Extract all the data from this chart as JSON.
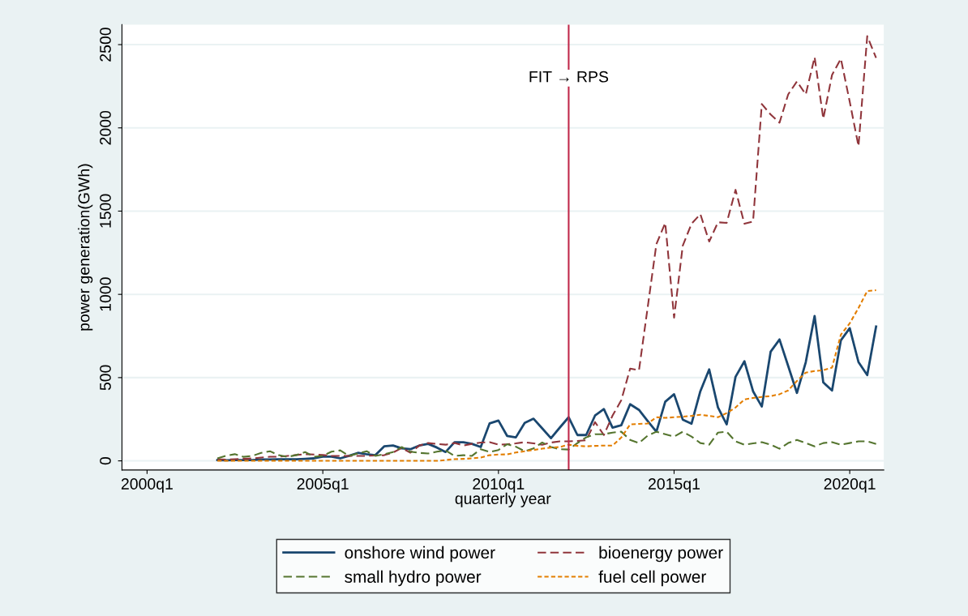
{
  "chart_data": {
    "type": "line",
    "xlabel": "quarterly year",
    "ylabel": "power generation(GWh)",
    "x": [
      "2002-01",
      "2002-04",
      "2002-07",
      "2002-10",
      "2003-01",
      "2003-04",
      "2003-07",
      "2003-10",
      "2004-01",
      "2004-04",
      "2004-07",
      "2004-10",
      "2005-01",
      "2005-04",
      "2005-07",
      "2005-10",
      "2006-01",
      "2006-04",
      "2006-07",
      "2006-10",
      "2007-01",
      "2007-04",
      "2007-07",
      "2007-10",
      "2008-01",
      "2008-04",
      "2008-07",
      "2008-10",
      "2009-01",
      "2009-04",
      "2009-07",
      "2009-10",
      "2010-01",
      "2010-04",
      "2010-07",
      "2010-10",
      "2011-01",
      "2011-04",
      "2011-07",
      "2011-10",
      "2012-01",
      "2012-04",
      "2012-07",
      "2012-10",
      "2013-01",
      "2013-04",
      "2013-07",
      "2013-10",
      "2014-01",
      "2014-04",
      "2014-07",
      "2014-10",
      "2015-01",
      "2015-04",
      "2015-07",
      "2015-10",
      "2016-01",
      "2016-04",
      "2016-07",
      "2016-10",
      "2017-01",
      "2017-04",
      "2017-07",
      "2017-10",
      "2018-01",
      "2018-04",
      "2018-07",
      "2018-10",
      "2019-01",
      "2019-04",
      "2019-07",
      "2019-10",
      "2020-01",
      "2020-04",
      "2020-07",
      "2020-10"
    ],
    "xlim": [
      "1999-04-15",
      "2020-12-20"
    ],
    "ylim": [
      -55,
      2620
    ],
    "xticks": [
      {
        "value": "2000-01",
        "label": "2000q1"
      },
      {
        "value": "2005-01",
        "label": "2005q1"
      },
      {
        "value": "2010-01",
        "label": "2010q1"
      },
      {
        "value": "2015-01",
        "label": "2015q1"
      },
      {
        "value": "2020-01",
        "label": "2020q1"
      }
    ],
    "yticks": [
      0,
      500,
      1000,
      1500,
      2000,
      2500
    ],
    "grid": "y",
    "legend": "bottom",
    "marker": "none",
    "ref_lines": [
      {
        "axis": "x",
        "value": "2012-01",
        "label": "FIT → RPS",
        "color": "#c0284a",
        "line_style": "solid"
      }
    ],
    "series": [
      {
        "name": "onshore wind power",
        "color": "#1a476f",
        "line_style": "solid",
        "values": [
          5,
          3,
          5,
          5,
          5,
          8,
          8,
          10,
          10,
          10,
          12,
          15,
          25,
          25,
          15,
          30,
          48,
          40,
          34,
          87,
          92,
          75,
          70,
          92,
          102,
          80,
          53,
          112,
          112,
          102,
          83,
          225,
          242,
          150,
          141,
          228,
          253,
          195,
          136,
          200,
          262,
          155,
          155,
          272,
          311,
          199,
          214,
          340,
          306,
          240,
          175,
          355,
          400,
          248,
          223,
          418,
          549,
          321,
          219,
          505,
          598,
          418,
          326,
          656,
          729,
          570,
          408,
          593,
          870,
          471,
          423,
          724,
          797,
          593,
          515,
          807
        ]
      },
      {
        "name": "bioenergy power",
        "color": "#90353b",
        "line_style": "dashed",
        "values": [
          10,
          8,
          10,
          12,
          15,
          20,
          25,
          25,
          30,
          35,
          40,
          38,
          35,
          30,
          30,
          30,
          30,
          30,
          32,
          34,
          50,
          77,
          49,
          92,
          107,
          102,
          97,
          107,
          92,
          102,
          110,
          112,
          97,
          100,
          105,
          112,
          105,
          97,
          110,
          117,
          117,
          120,
          124,
          233,
          155,
          272,
          364,
          554,
          544,
          920,
          1302,
          1429,
          860,
          1292,
          1424,
          1482,
          1317,
          1433,
          1429,
          1628,
          1424,
          1438,
          2143,
          2080,
          2031,
          2201,
          2279,
          2201,
          2425,
          2055,
          2318,
          2415,
          2157,
          1890,
          2551,
          2420
        ]
      },
      {
        "name": "small hydro power",
        "color": "#55752f",
        "line_style": "dashed",
        "values": [
          15,
          30,
          40,
          24,
          30,
          48,
          58,
          34,
          24,
          35,
          53,
          25,
          30,
          55,
          63,
          30,
          45,
          58,
          30,
          40,
          53,
          83,
          55,
          48,
          44,
          55,
          63,
          30,
          34,
          30,
          70,
          53,
          65,
          100,
          85,
          58,
          75,
          110,
          83,
          70,
          68,
          107,
          141,
          160,
          160,
          170,
          175,
          126,
          107,
          151,
          175,
          160,
          146,
          175,
          146,
          107,
          97,
          170,
          175,
          117,
          97,
          105,
          112,
          97,
          73,
          107,
          126,
          107,
          87,
          107,
          112,
          97,
          107,
          117,
          117,
          102
        ]
      },
      {
        "name": "fuel cell power",
        "color": "#e37e00",
        "line_style": "dotted",
        "values": [
          0,
          0,
          0,
          0,
          0,
          0,
          0,
          0,
          0,
          0,
          0,
          0,
          0,
          0,
          0,
          0,
          0,
          0,
          0,
          0,
          0,
          0,
          0,
          0,
          0,
          0,
          5,
          10,
          12,
          15,
          20,
          34,
          38,
          39,
          50,
          58,
          65,
          73,
          80,
          83,
          97,
          90,
          87,
          90,
          92,
          92,
          140,
          219,
          222,
          224,
          262,
          258,
          262,
          265,
          270,
          277,
          270,
          262,
          287,
          320,
          369,
          378,
          384,
          389,
          400,
          423,
          480,
          530,
          540,
          544,
          560,
          758,
          826,
          918,
          1020,
          1025
        ]
      }
    ]
  }
}
